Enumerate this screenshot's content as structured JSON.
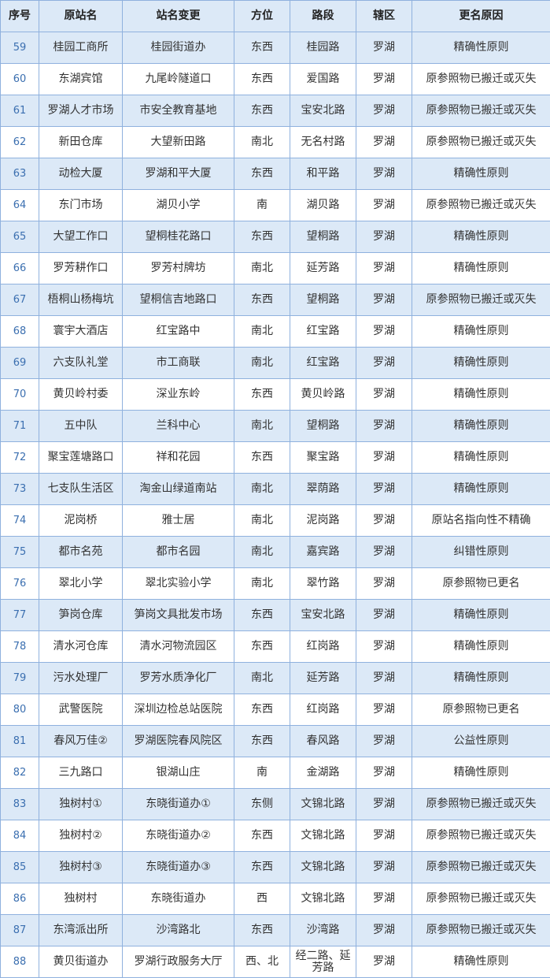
{
  "table": {
    "header": [
      "序号",
      "原站名",
      "站名变更",
      "方位",
      "路段",
      "辖区",
      "更名原因"
    ],
    "rows": [
      [
        "59",
        "桂园工商所",
        "桂园街道办",
        "东西",
        "桂园路",
        "罗湖",
        "精确性原则"
      ],
      [
        "60",
        "东湖宾馆",
        "九尾岭隧道口",
        "东西",
        "爱国路",
        "罗湖",
        "原参照物已搬迁或灭失"
      ],
      [
        "61",
        "罗湖人才市场",
        "市安全教育基地",
        "东西",
        "宝安北路",
        "罗湖",
        "原参照物已搬迁或灭失"
      ],
      [
        "62",
        "新田仓库",
        "大望新田路",
        "南北",
        "无名村路",
        "罗湖",
        "原参照物已搬迁或灭失"
      ],
      [
        "63",
        "动检大厦",
        "罗湖和平大厦",
        "东西",
        "和平路",
        "罗湖",
        "精确性原则"
      ],
      [
        "64",
        "东门市场",
        "湖贝小学",
        "南",
        "湖贝路",
        "罗湖",
        "原参照物已搬迁或灭失"
      ],
      [
        "65",
        "大望工作口",
        "望桐桂花路口",
        "东西",
        "望桐路",
        "罗湖",
        "精确性原则"
      ],
      [
        "66",
        "罗芳耕作口",
        "罗芳村牌坊",
        "南北",
        "延芳路",
        "罗湖",
        "精确性原则"
      ],
      [
        "67",
        "梧桐山杨梅坑",
        "望桐信吉地路口",
        "东西",
        "望桐路",
        "罗湖",
        "原参照物已搬迁或灭失"
      ],
      [
        "68",
        "寰宇大酒店",
        "红宝路中",
        "南北",
        "红宝路",
        "罗湖",
        "精确性原则"
      ],
      [
        "69",
        "六支队礼堂",
        "市工商联",
        "南北",
        "红宝路",
        "罗湖",
        "精确性原则"
      ],
      [
        "70",
        "黄贝岭村委",
        "深业东岭",
        "东西",
        "黄贝岭路",
        "罗湖",
        "精确性原则"
      ],
      [
        "71",
        "五中队",
        "兰科中心",
        "南北",
        "望桐路",
        "罗湖",
        "精确性原则"
      ],
      [
        "72",
        "聚宝莲塘路口",
        "祥和花园",
        "东西",
        "聚宝路",
        "罗湖",
        "精确性原则"
      ],
      [
        "73",
        "七支队生活区",
        "淘金山绿道南站",
        "南北",
        "翠荫路",
        "罗湖",
        "精确性原则"
      ],
      [
        "74",
        "泥岗桥",
        "雅士居",
        "南北",
        "泥岗路",
        "罗湖",
        "原站名指向性不精确"
      ],
      [
        "75",
        "都市名苑",
        "都市名园",
        "南北",
        "嘉宾路",
        "罗湖",
        "纠错性原则"
      ],
      [
        "76",
        "翠北小学",
        "翠北实验小学",
        "南北",
        "翠竹路",
        "罗湖",
        "原参照物已更名"
      ],
      [
        "77",
        "笋岗仓库",
        "笋岗文具批发市场",
        "东西",
        "宝安北路",
        "罗湖",
        "精确性原则"
      ],
      [
        "78",
        "清水河仓库",
        "清水河物流园区",
        "东西",
        "红岗路",
        "罗湖",
        "精确性原则"
      ],
      [
        "79",
        "污水处理厂",
        "罗芳水质净化厂",
        "南北",
        "延芳路",
        "罗湖",
        "精确性原则"
      ],
      [
        "80",
        "武警医院",
        "深圳边检总站医院",
        "东西",
        "红岗路",
        "罗湖",
        "原参照物已更名"
      ],
      [
        "81",
        "春风万佳②",
        "罗湖医院春风院区",
        "东西",
        "春风路",
        "罗湖",
        "公益性原则"
      ],
      [
        "82",
        "三九路口",
        "银湖山庄",
        "南",
        "金湖路",
        "罗湖",
        "精确性原则"
      ],
      [
        "83",
        "独树村①",
        "东晓街道办①",
        "东侧",
        "文锦北路",
        "罗湖",
        "原参照物已搬迁或灭失"
      ],
      [
        "84",
        "独树村②",
        "东晓街道办②",
        "东西",
        "文锦北路",
        "罗湖",
        "原参照物已搬迁或灭失"
      ],
      [
        "85",
        "独树村③",
        "东晓街道办③",
        "东西",
        "文锦北路",
        "罗湖",
        "原参照物已搬迁或灭失"
      ],
      [
        "86",
        "独树村",
        "东晓街道办",
        "西",
        "文锦北路",
        "罗湖",
        "原参照物已搬迁或灭失"
      ],
      [
        "87",
        "东湾派出所",
        "沙湾路北",
        "东西",
        "沙湾路",
        "罗湖",
        "原参照物已搬迁或灭失"
      ],
      [
        "88",
        "黄贝街道办",
        "罗湖行政服务大厅",
        "西、北",
        "经二路、延芳路",
        "罗湖",
        "精确性原则"
      ]
    ]
  }
}
